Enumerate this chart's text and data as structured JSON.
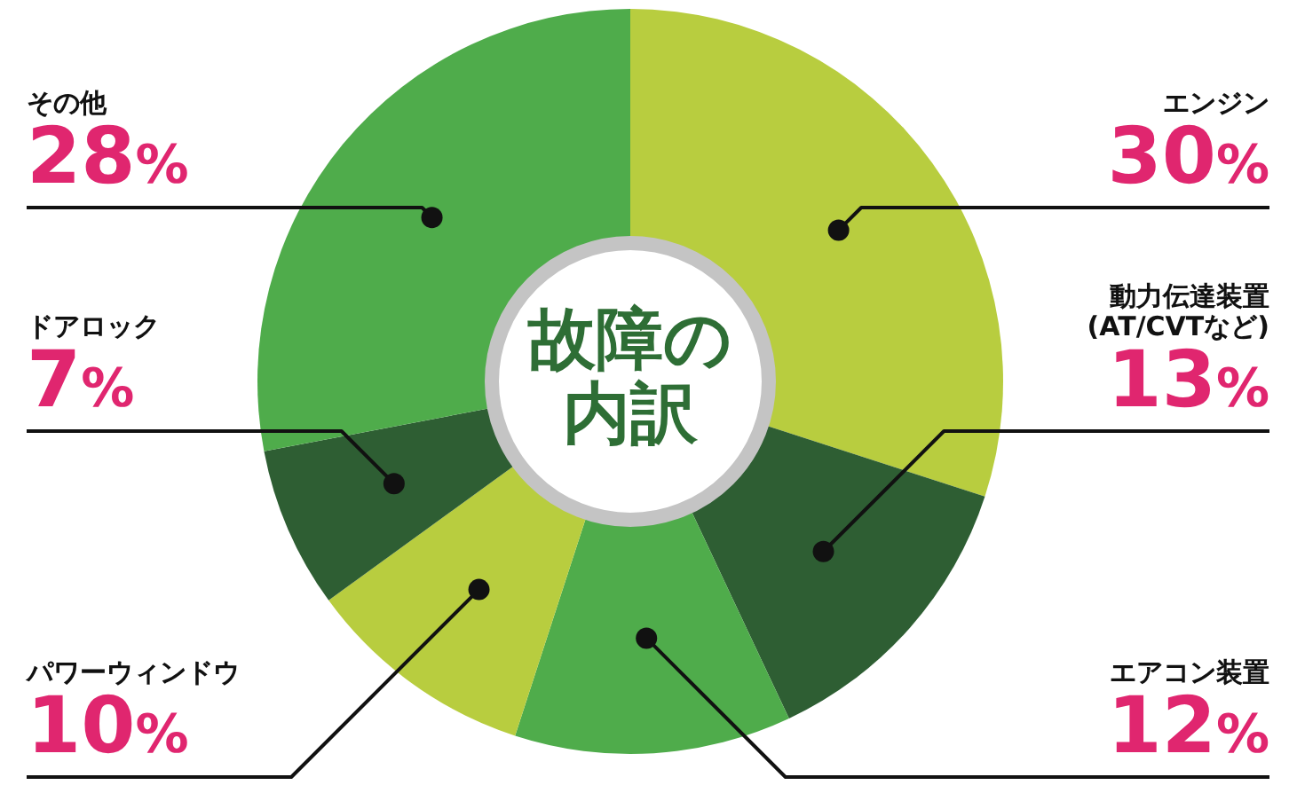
{
  "chart_data": {
    "type": "donut",
    "title": "故障の内訳",
    "categories": [
      "エンジン",
      "動力伝達装置(AT/CVTなど)",
      "エアコン装置",
      "パワーウィンドウ",
      "ドアロック",
      "その他"
    ],
    "values": [
      30,
      13,
      12,
      10,
      7,
      28
    ],
    "value_labels": [
      "30%",
      "13%",
      "12%",
      "10%",
      "7%",
      "28%"
    ],
    "colors": [
      "#b8cd3f",
      "#2e5e33",
      "#4fac4b",
      "#b8cd3f",
      "#2e5e33",
      "#4fac4b"
    ]
  }
}
